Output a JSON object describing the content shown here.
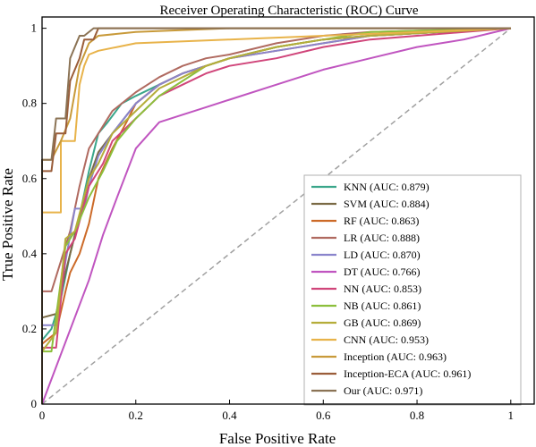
{
  "chart_data": {
    "type": "line",
    "title": "Receiver Operating Characteristic (ROC) Curve",
    "xlabel": "False Positive Rate",
    "ylabel": "True Positive Rate",
    "xlim": [
      0,
      1.05
    ],
    "ylim": [
      0,
      1.03
    ],
    "xticks": [
      0,
      0.2,
      0.4,
      0.6,
      0.8,
      1
    ],
    "xtick_labels": [
      "0",
      "0.2",
      "0.4",
      "0.6",
      "0.8",
      "1"
    ],
    "yticks": [
      0,
      0.2,
      0.4,
      0.6,
      0.8,
      1
    ],
    "ytick_labels": [
      "0",
      "0.2",
      "0.4",
      "0.6",
      "0.8",
      "1"
    ],
    "grid": false,
    "legend_position": "lower-right",
    "diagonal": {
      "x": [
        0,
        1
      ],
      "y": [
        0,
        1
      ],
      "color": "#a0a0a0",
      "style": "dashed"
    },
    "series": [
      {
        "name": "KNN (AUC: 0.879)",
        "color": "#3aa68a",
        "x": [
          0,
          0,
          0.02,
          0.04,
          0.06,
          0.08,
          0.1,
          0.12,
          0.14,
          0.17,
          0.2,
          0.25,
          0.3,
          0.35,
          0.4,
          0.5,
          0.6,
          0.7,
          1
        ],
        "y": [
          0,
          0.17,
          0.2,
          0.28,
          0.4,
          0.5,
          0.62,
          0.72,
          0.75,
          0.8,
          0.82,
          0.85,
          0.88,
          0.9,
          0.92,
          0.95,
          0.97,
          0.98,
          1
        ]
      },
      {
        "name": "SVM (AUC: 0.884)",
        "color": "#7a6a45",
        "x": [
          0,
          0,
          0.03,
          0.05,
          0.07,
          0.1,
          0.12,
          0.15,
          0.2,
          0.25,
          0.3,
          0.35,
          0.4,
          0.5,
          0.6,
          0.7,
          1
        ],
        "y": [
          0,
          0.23,
          0.24,
          0.35,
          0.45,
          0.6,
          0.67,
          0.72,
          0.8,
          0.85,
          0.88,
          0.9,
          0.92,
          0.95,
          0.97,
          0.98,
          1
        ]
      },
      {
        "name": "RF (AUC: 0.863)",
        "color": "#cc6a28",
        "x": [
          0,
          0,
          0.03,
          0.05,
          0.06,
          0.08,
          0.1,
          0.12,
          0.15,
          0.18,
          0.2,
          0.25,
          0.3,
          0.35,
          0.4,
          0.5,
          0.6,
          0.7,
          1
        ],
        "y": [
          0,
          0.16,
          0.19,
          0.3,
          0.35,
          0.4,
          0.48,
          0.6,
          0.68,
          0.75,
          0.8,
          0.85,
          0.88,
          0.9,
          0.92,
          0.94,
          0.96,
          0.98,
          1
        ]
      },
      {
        "name": "LR (AUC: 0.888)",
        "color": "#b06a60",
        "x": [
          0,
          0,
          0.02,
          0.04,
          0.06,
          0.08,
          0.1,
          0.12,
          0.15,
          0.2,
          0.25,
          0.3,
          0.35,
          0.4,
          0.5,
          0.6,
          0.7,
          1
        ],
        "y": [
          0,
          0.3,
          0.3,
          0.38,
          0.46,
          0.58,
          0.68,
          0.72,
          0.78,
          0.83,
          0.87,
          0.9,
          0.92,
          0.93,
          0.96,
          0.98,
          0.99,
          1
        ]
      },
      {
        "name": "LD (AUC: 0.870)",
        "color": "#8a84cc",
        "x": [
          0,
          0,
          0.03,
          0.05,
          0.07,
          0.09,
          0.1,
          0.12,
          0.15,
          0.2,
          0.25,
          0.3,
          0.35,
          0.4,
          0.5,
          0.6,
          0.7,
          1
        ],
        "y": [
          0,
          0.21,
          0.21,
          0.38,
          0.52,
          0.52,
          0.58,
          0.66,
          0.72,
          0.8,
          0.85,
          0.88,
          0.9,
          0.92,
          0.94,
          0.96,
          0.98,
          1
        ]
      },
      {
        "name": "DT (AUC: 0.766)",
        "color": "#c055c0",
        "x": [
          0,
          0.1,
          0.13,
          0.16,
          0.2,
          0.25,
          0.3,
          0.35,
          0.4,
          0.5,
          0.6,
          0.7,
          0.8,
          0.9,
          1
        ],
        "y": [
          0,
          0.33,
          0.45,
          0.55,
          0.68,
          0.75,
          0.77,
          0.79,
          0.81,
          0.85,
          0.89,
          0.92,
          0.95,
          0.97,
          1
        ]
      },
      {
        "name": "NN (AUC: 0.853)",
        "color": "#d0457a",
        "x": [
          0,
          0,
          0.03,
          0.05,
          0.07,
          0.1,
          0.13,
          0.15,
          0.2,
          0.25,
          0.3,
          0.35,
          0.4,
          0.5,
          0.6,
          0.7,
          0.8,
          1
        ],
        "y": [
          0,
          0.15,
          0.15,
          0.4,
          0.44,
          0.58,
          0.64,
          0.7,
          0.76,
          0.82,
          0.85,
          0.88,
          0.9,
          0.92,
          0.95,
          0.97,
          0.98,
          1
        ]
      },
      {
        "name": "NB (AUC: 0.861)",
        "color": "#8cbf3c",
        "x": [
          0,
          0,
          0.02,
          0.05,
          0.07,
          0.1,
          0.13,
          0.16,
          0.2,
          0.25,
          0.3,
          0.35,
          0.4,
          0.5,
          0.6,
          0.7,
          1
        ],
        "y": [
          0,
          0.14,
          0.14,
          0.42,
          0.46,
          0.55,
          0.62,
          0.7,
          0.76,
          0.82,
          0.86,
          0.9,
          0.92,
          0.95,
          0.97,
          0.99,
          1
        ]
      },
      {
        "name": "GB (AUC: 0.869)",
        "color": "#b5ad3a",
        "x": [
          0,
          0,
          0.03,
          0.05,
          0.07,
          0.1,
          0.12,
          0.15,
          0.2,
          0.25,
          0.3,
          0.35,
          0.4,
          0.5,
          0.6,
          0.7,
          1
        ],
        "y": [
          0,
          0.14,
          0.19,
          0.44,
          0.46,
          0.6,
          0.64,
          0.72,
          0.78,
          0.84,
          0.87,
          0.9,
          0.92,
          0.95,
          0.97,
          0.98,
          1
        ]
      },
      {
        "name": "CNN (AUC: 0.953)",
        "color": "#e8b34a",
        "x": [
          0,
          0,
          0.04,
          0.04,
          0.07,
          0.08,
          0.09,
          0.1,
          0.12,
          0.16,
          0.2,
          0.4,
          0.6,
          1
        ],
        "y": [
          0,
          0.51,
          0.51,
          0.7,
          0.7,
          0.85,
          0.9,
          0.93,
          0.94,
          0.95,
          0.96,
          0.97,
          0.98,
          1
        ]
      },
      {
        "name": "Inception (AUC: 0.963)",
        "color": "#c89a3a",
        "x": [
          0,
          0,
          0.02,
          0.04,
          0.06,
          0.08,
          0.1,
          0.12,
          0.2,
          0.4,
          0.6,
          1
        ],
        "y": [
          0,
          0.65,
          0.65,
          0.7,
          0.76,
          0.9,
          0.96,
          0.98,
          0.99,
          1,
          1,
          1
        ]
      },
      {
        "name": "Inception-ECA (AUC: 0.961)",
        "color": "#9a5d3a",
        "x": [
          0,
          0,
          0.02,
          0.03,
          0.05,
          0.06,
          0.08,
          0.09,
          0.11,
          0.12,
          0.2,
          0.4,
          0.6,
          1
        ],
        "y": [
          0,
          0.62,
          0.62,
          0.72,
          0.72,
          0.86,
          0.92,
          0.97,
          0.97,
          1,
          1,
          1,
          1,
          1
        ]
      },
      {
        "name": "Our (AUC: 0.971)",
        "color": "#8b7355",
        "x": [
          0,
          0,
          0.02,
          0.03,
          0.05,
          0.06,
          0.08,
          0.09,
          0.11,
          0.12,
          0.4,
          1
        ],
        "y": [
          0,
          0.65,
          0.65,
          0.76,
          0.76,
          0.92,
          0.98,
          0.98,
          1,
          1,
          1,
          1
        ]
      }
    ]
  }
}
